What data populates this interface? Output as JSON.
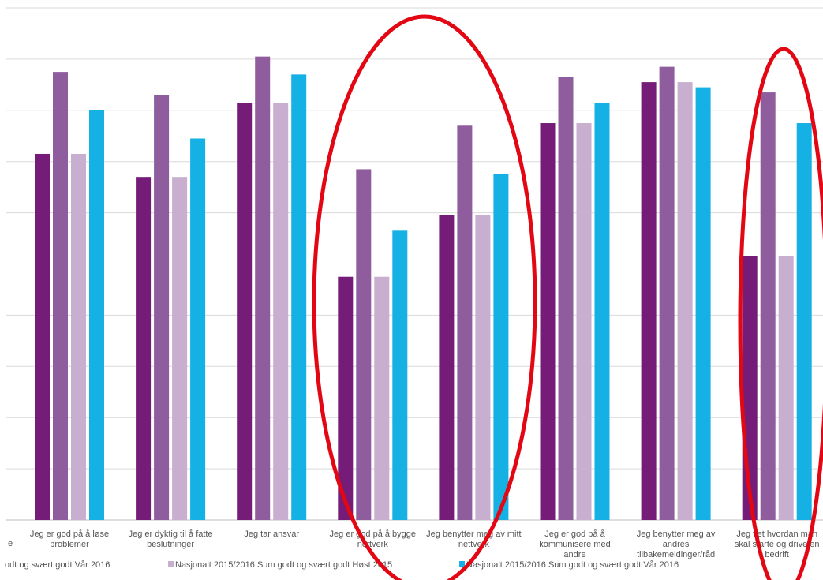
{
  "chart_data": {
    "type": "bar",
    "title": "",
    "xlabel": "",
    "ylabel": "",
    "ylim": [
      0,
      100
    ],
    "grid": true,
    "legend_position": "bottom",
    "categories": [
      [
        "Jeg er god på å løse",
        "problemer"
      ],
      [
        "Jeg er dyktig til å fatte",
        "beslutninger"
      ],
      [
        "Jeg tar ansvar"
      ],
      [
        "Jeg er god på å bygge",
        "nettverk"
      ],
      [
        "Jeg benytter meg av mitt",
        "nettverk"
      ],
      [
        "Jeg er god på å",
        "kommunisere med",
        "andre"
      ],
      [
        "Jeg benytter meg av",
        "andres",
        "tilbakemeldinger/råd"
      ],
      [
        "Jeg vet hvordan man",
        "skal starte og drive en",
        "bedrift"
      ]
    ],
    "left_edge_fragment": "e",
    "series": [
      {
        "color": "#751c78",
        "values": [
          71.5,
          67,
          81.5,
          47.5,
          59.5,
          77.5,
          85.5,
          51.5
        ]
      },
      {
        "color": "#8f5d9d",
        "values": [
          87.5,
          83,
          90.5,
          68.5,
          77,
          86.5,
          88.5,
          83.5
        ]
      },
      {
        "color": "#c8aecf",
        "values": [
          71.5,
          67,
          81.5,
          47.5,
          59.5,
          77.5,
          85.5,
          51.5
        ]
      },
      {
        "color": "#16b1e4",
        "values": [
          80,
          74.5,
          87,
          56.5,
          67.5,
          81.5,
          84.5,
          77.5
        ]
      }
    ],
    "legend": [
      {
        "label": "odt og svært godt  Vår 2016",
        "color": "#8f5d9d",
        "marker": false
      },
      {
        "label": "Nasjonalt 2015/2016 Sum godt og svært godt  Høst 2015",
        "color": "#c8aecf",
        "marker": true
      },
      {
        "label": "Nasjonalt 2015/2016 Sum godt og svært godt  Vår 2016",
        "color": "#16b1e4",
        "marker": true
      }
    ],
    "annotations": [
      {
        "type": "ellipse",
        "color": "#e30613",
        "around_categories": [
          3,
          4
        ]
      },
      {
        "type": "ellipse",
        "color": "#e30613",
        "around_categories": [
          7
        ]
      }
    ]
  }
}
